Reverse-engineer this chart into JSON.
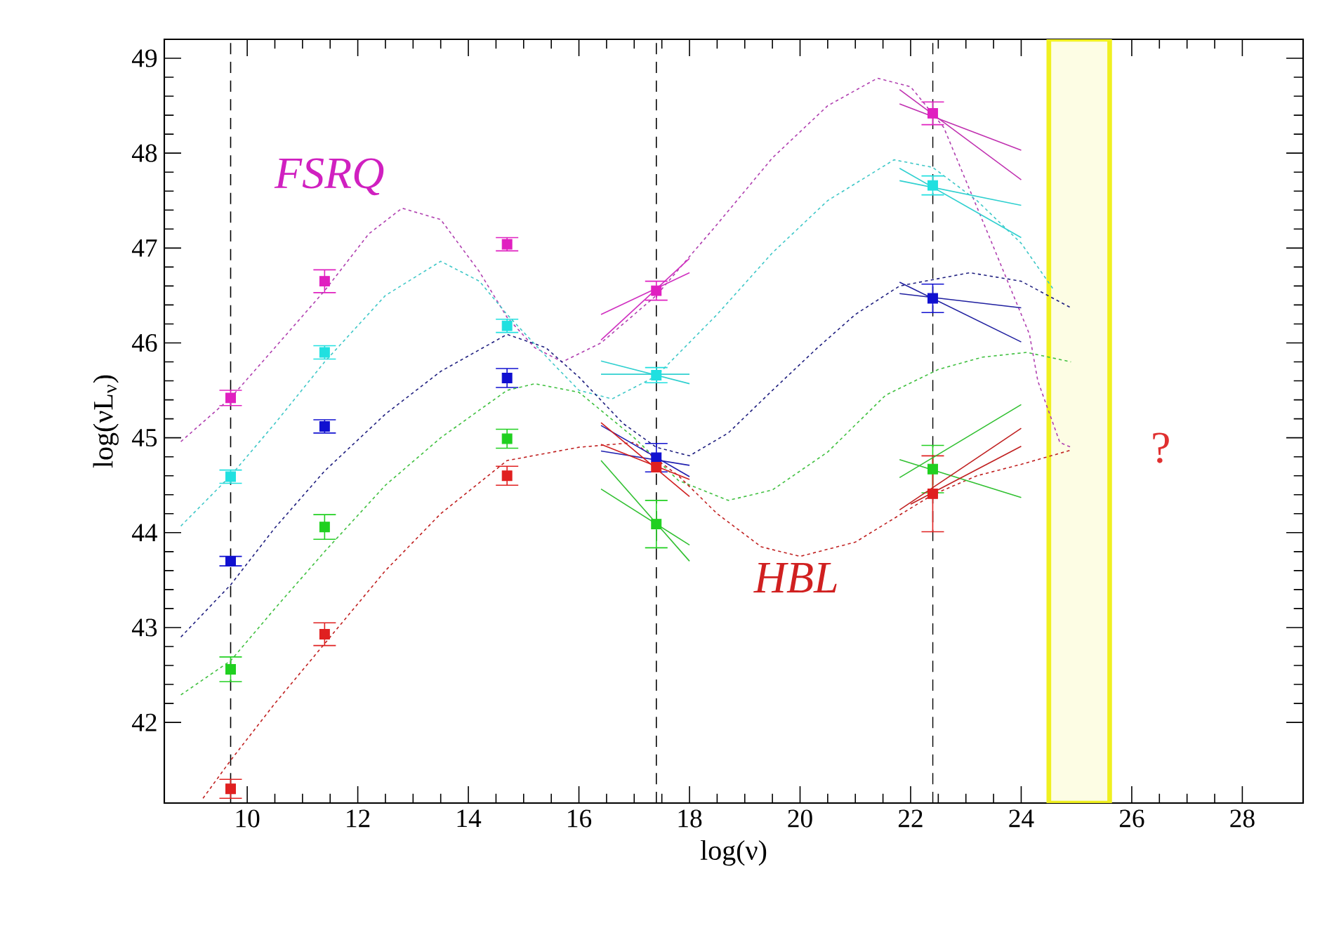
{
  "chart_data": {
    "type": "scatter",
    "marker": "square",
    "xlabel": "log(ν)",
    "ylabel": "log(νL$_{ν}$)",
    "xlim": [
      8.5,
      29.1
    ],
    "ylim": [
      41.15,
      49.2
    ],
    "xticks": [
      10,
      12,
      14,
      16,
      18,
      20,
      22,
      24,
      26,
      28
    ],
    "yticks": [
      42,
      43,
      44,
      45,
      46,
      47,
      48,
      49
    ],
    "series": [
      {
        "color": "#e020c0",
        "x": [
          9.7,
          11.4,
          14.7,
          17.4,
          22.4
        ],
        "values": [
          45.42,
          46.65,
          47.04,
          46.55,
          48.42
        ],
        "errors": [
          0.08,
          0.12,
          0.07,
          0.1,
          0.12
        ]
      },
      {
        "color": "#20e0e0",
        "x": [
          9.7,
          11.4,
          14.7,
          17.4,
          22.4
        ],
        "values": [
          44.59,
          45.9,
          46.18,
          45.66,
          47.66
        ],
        "errors": [
          0.07,
          0.07,
          0.07,
          0.08,
          0.1
        ]
      },
      {
        "color": "#1010d0",
        "x": [
          9.7,
          11.4,
          14.7,
          17.4,
          22.4
        ],
        "values": [
          43.7,
          45.12,
          45.63,
          44.79,
          46.47
        ],
        "errors": [
          0.05,
          0.07,
          0.1,
          0.15,
          0.15
        ]
      },
      {
        "color": "#20d020",
        "x": [
          9.7,
          11.4,
          14.7,
          17.4,
          22.4
        ],
        "values": [
          42.56,
          44.06,
          44.99,
          44.09,
          44.67
        ],
        "errors": [
          0.13,
          0.13,
          0.1,
          0.25,
          0.25
        ]
      },
      {
        "color": "#e02020",
        "x": [
          9.7,
          11.4,
          14.7,
          17.4,
          22.4
        ],
        "values": [
          41.3,
          42.93,
          44.6,
          44.69,
          44.41
        ],
        "errors": [
          0.1,
          0.12,
          0.1,
          null,
          0.4
        ]
      },
      {
        "type": "line",
        "marker": "none",
        "line_style": "dotted",
        "color": "#b040b0",
        "x": [
          8.8,
          9.7,
          10.5,
          11.4,
          12.2,
          12.8,
          13.5,
          14.2,
          14.7,
          15.2,
          15.7,
          16.4,
          17.4,
          18.5,
          19.5,
          20.5,
          21.4,
          22.0,
          22.6,
          23.45,
          24.15,
          24.3,
          24.7,
          24.9
        ],
        "values": [
          44.96,
          45.42,
          45.95,
          46.55,
          47.15,
          47.42,
          47.3,
          46.75,
          46.27,
          45.95,
          45.8,
          46.0,
          46.5,
          47.25,
          47.95,
          48.5,
          48.79,
          48.7,
          48.27,
          47.08,
          46.09,
          45.6,
          44.95,
          44.9
        ]
      },
      {
        "type": "line",
        "marker": "none",
        "line_style": "dotted",
        "color": "#40c8c8",
        "x": [
          8.8,
          9.7,
          10.5,
          11.4,
          12.5,
          13.5,
          14.2,
          14.7,
          15.5,
          16.0,
          16.6,
          17.4,
          18.5,
          19.5,
          20.5,
          21.7,
          22.4,
          23.2,
          24.0,
          24.6
        ],
        "values": [
          44.07,
          44.6,
          45.15,
          45.8,
          46.5,
          46.86,
          46.65,
          46.3,
          45.8,
          45.5,
          45.41,
          45.65,
          46.3,
          46.95,
          47.5,
          47.93,
          47.85,
          47.5,
          47.05,
          46.55
        ]
      },
      {
        "type": "line",
        "marker": "none",
        "line_style": "dotted",
        "color": "#202080",
        "x": [
          8.8,
          9.7,
          10.5,
          11.4,
          12.5,
          13.5,
          14.7,
          15.4,
          16.0,
          16.8,
          17.4,
          18.0,
          18.7,
          19.5,
          20.3,
          21.0,
          21.8,
          23.07,
          24.0,
          24.9
        ],
        "values": [
          42.9,
          43.45,
          44.05,
          44.65,
          45.25,
          45.7,
          46.09,
          45.95,
          45.64,
          45.15,
          44.9,
          44.81,
          45.05,
          45.5,
          45.94,
          46.3,
          46.6,
          46.74,
          46.65,
          46.37
        ]
      },
      {
        "type": "line",
        "marker": "none",
        "line_style": "dotted",
        "color": "#40c040",
        "x": [
          8.8,
          9.7,
          10.5,
          11.4,
          12.5,
          13.5,
          14.7,
          15.2,
          16.0,
          17.0,
          17.8,
          18.7,
          19.5,
          20.5,
          21.55,
          22.5,
          23.3,
          24.1,
          24.9
        ],
        "values": [
          42.29,
          42.65,
          43.2,
          43.8,
          44.5,
          45.0,
          45.5,
          45.57,
          45.48,
          45.0,
          44.55,
          44.34,
          44.45,
          44.85,
          45.45,
          45.72,
          45.85,
          45.9,
          45.8
        ]
      },
      {
        "type": "line",
        "marker": "none",
        "line_style": "dotted",
        "color": "#c02020",
        "x": [
          9.2,
          9.7,
          10.5,
          11.4,
          12.5,
          13.5,
          14.7,
          16.0,
          17.0,
          17.8,
          18.5,
          19.3,
          20.0,
          21.0,
          22.4,
          23.2,
          24.0,
          24.9
        ],
        "values": [
          41.2,
          41.6,
          42.2,
          42.83,
          43.6,
          44.2,
          44.76,
          44.9,
          44.95,
          44.6,
          44.2,
          43.85,
          43.75,
          43.9,
          44.4,
          44.6,
          44.72,
          44.87
        ]
      },
      {
        "type": "line",
        "marker": "none",
        "color": "#d030c0",
        "x": [
          16.4,
          18.0
        ],
        "values": [
          46.3,
          46.74
        ]
      },
      {
        "type": "line",
        "marker": "none",
        "color": "#d030c0",
        "x": [
          16.4,
          18.0
        ],
        "values": [
          46.03,
          46.89
        ]
      },
      {
        "type": "line",
        "marker": "none",
        "color": "#30d0d0",
        "x": [
          16.4,
          18.0
        ],
        "values": [
          45.81,
          45.57
        ]
      },
      {
        "type": "line",
        "marker": "none",
        "color": "#30d0d0",
        "x": [
          16.4,
          18.0
        ],
        "values": [
          45.67,
          45.67
        ]
      },
      {
        "type": "line",
        "marker": "none",
        "color": "#2020b0",
        "x": [
          16.4,
          18.0
        ],
        "values": [
          45.13,
          44.59
        ]
      },
      {
        "type": "line",
        "marker": "none",
        "color": "#2020b0",
        "x": [
          16.4,
          18.0
        ],
        "values": [
          44.86,
          44.71
        ]
      },
      {
        "type": "line",
        "marker": "none",
        "color": "#d02020",
        "x": [
          16.4,
          18.0
        ],
        "values": [
          45.16,
          44.38
        ]
      },
      {
        "type": "line",
        "marker": "none",
        "color": "#d02020",
        "x": [
          16.4,
          18.0
        ],
        "values": [
          44.93,
          44.56
        ]
      },
      {
        "type": "line",
        "marker": "none",
        "color": "#30c030",
        "x": [
          16.4,
          18.0
        ],
        "values": [
          44.76,
          43.7
        ]
      },
      {
        "type": "line",
        "marker": "none",
        "color": "#30c030",
        "x": [
          16.4,
          18.0
        ],
        "values": [
          44.46,
          43.87
        ]
      },
      {
        "type": "line",
        "marker": "none",
        "color": "#c030b0",
        "x": [
          21.8,
          24.0
        ],
        "values": [
          48.67,
          47.72
        ]
      },
      {
        "type": "line",
        "marker": "none",
        "color": "#c030b0",
        "x": [
          21.8,
          24.0
        ],
        "values": [
          48.52,
          48.03
        ]
      },
      {
        "type": "line",
        "marker": "none",
        "color": "#30d0d0",
        "x": [
          21.8,
          24.0
        ],
        "values": [
          47.84,
          47.11
        ]
      },
      {
        "type": "line",
        "marker": "none",
        "color": "#30d0d0",
        "x": [
          21.8,
          24.0
        ],
        "values": [
          47.71,
          47.45
        ]
      },
      {
        "type": "line",
        "marker": "none",
        "color": "#2020a0",
        "x": [
          21.8,
          24.0
        ],
        "values": [
          46.64,
          46.01
        ]
      },
      {
        "type": "line",
        "marker": "none",
        "color": "#2020a0",
        "x": [
          21.8,
          24.0
        ],
        "values": [
          46.52,
          46.37
        ]
      },
      {
        "type": "line",
        "marker": "none",
        "color": "#30c030",
        "x": [
          21.8,
          24.0
        ],
        "values": [
          44.77,
          44.37
        ]
      },
      {
        "type": "line",
        "marker": "none",
        "color": "#30c030",
        "x": [
          21.8,
          24.0
        ],
        "values": [
          44.58,
          45.35
        ]
      },
      {
        "type": "line",
        "marker": "none",
        "color": "#c02020",
        "x": [
          21.8,
          24.0
        ],
        "values": [
          44.24,
          45.1
        ]
      },
      {
        "type": "line",
        "marker": "none",
        "color": "#c02020",
        "x": [
          22.0,
          24.0
        ],
        "values": [
          44.3,
          44.91
        ]
      }
    ],
    "ref_lines": [
      {
        "axis": "x",
        "value": 9.7,
        "color": "#000000",
        "line_style": "dashed"
      },
      {
        "axis": "x",
        "value": 17.4,
        "color": "#000000",
        "line_style": "dashed"
      },
      {
        "axis": "x",
        "value": 22.4,
        "color": "#000000",
        "line_style": "dashed"
      }
    ],
    "bands": [
      {
        "axis": "x",
        "from": 24.5,
        "to": 25.6
      }
    ],
    "annotations": [
      "FSRQ",
      "HBL",
      "?"
    ]
  }
}
